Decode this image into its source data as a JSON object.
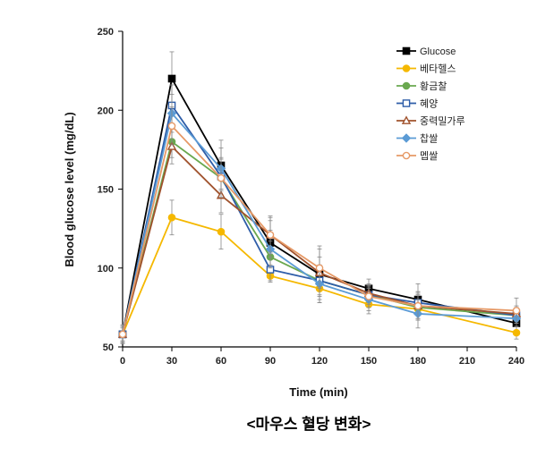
{
  "chart_data": {
    "type": "line",
    "title": "",
    "xlabel": "Time  (min)",
    "ylabel": "Blood glucose level (mg/dL)",
    "x": [
      0,
      30,
      60,
      90,
      120,
      150,
      180,
      210,
      240
    ],
    "x_ticks": [
      0,
      30,
      60,
      90,
      120,
      150,
      180,
      210,
      240
    ],
    "xlim": [
      0,
      240
    ],
    "ylim": [
      50,
      250
    ],
    "y_ticks": [
      50,
      100,
      150,
      200,
      250
    ],
    "grid": false,
    "legend_position": "top-right",
    "caption": "<마우스 혈당 변화>",
    "series": [
      {
        "name": "Glucose",
        "color": "#000000",
        "marker": "square-filled",
        "x": [
          0,
          30,
          60,
          90,
          120,
          150,
          180,
          240
        ],
        "values": [
          58,
          220,
          165,
          116,
          96,
          87,
          80,
          65
        ],
        "errors": [
          6,
          17,
          16,
          14,
          18,
          6,
          10,
          6
        ]
      },
      {
        "name": "베타헬스",
        "color": "#F5B800",
        "marker": "circle-filled",
        "x": [
          0,
          30,
          60,
          90,
          120,
          150,
          180,
          240
        ],
        "values": [
          58,
          132,
          123,
          95,
          87,
          77,
          74,
          59
        ],
        "errors": [
          4,
          11,
          11,
          3,
          9,
          6,
          6,
          4
        ]
      },
      {
        "name": "황금찰",
        "color": "#6AA84F",
        "marker": "circle-filled",
        "x": [
          0,
          30,
          60,
          90,
          120,
          150,
          180,
          240
        ],
        "values": [
          58,
          180,
          157,
          107,
          92,
          83,
          75,
          70
        ],
        "errors": [
          5,
          10,
          12,
          10,
          10,
          6,
          8,
          5
        ]
      },
      {
        "name": "혜양",
        "color": "#2E5DA8",
        "marker": "square-open",
        "x": [
          0,
          30,
          60,
          90,
          120,
          150,
          180,
          240
        ],
        "values": [
          58,
          203,
          158,
          99,
          92,
          83,
          78,
          70
        ],
        "errors": [
          5,
          13,
          12,
          8,
          9,
          5,
          7,
          5
        ]
      },
      {
        "name": "중력밀가루",
        "color": "#A0522D",
        "marker": "triangle-open",
        "x": [
          0,
          30,
          60,
          90,
          120,
          150,
          180,
          240
        ],
        "values": [
          58,
          177,
          146,
          121,
          97,
          84,
          76,
          71
        ],
        "errors": [
          5,
          11,
          11,
          12,
          10,
          6,
          8,
          5
        ]
      },
      {
        "name": "찹쌀",
        "color": "#5B9BD5",
        "marker": "diamond-filled",
        "x": [
          0,
          30,
          60,
          90,
          120,
          150,
          180,
          240
        ],
        "values": [
          58,
          198,
          163,
          112,
          90,
          80,
          71,
          68
        ],
        "errors": [
          5,
          12,
          13,
          12,
          10,
          7,
          9,
          5
        ]
      },
      {
        "name": "멥쌀",
        "color": "#E69966",
        "marker": "circle-open",
        "x": [
          0,
          30,
          60,
          90,
          120,
          150,
          180,
          240
        ],
        "values": [
          58,
          190,
          157,
          121,
          100,
          82,
          76,
          73
        ],
        "errors": [
          5,
          12,
          12,
          11,
          12,
          7,
          9,
          8
        ]
      }
    ]
  }
}
